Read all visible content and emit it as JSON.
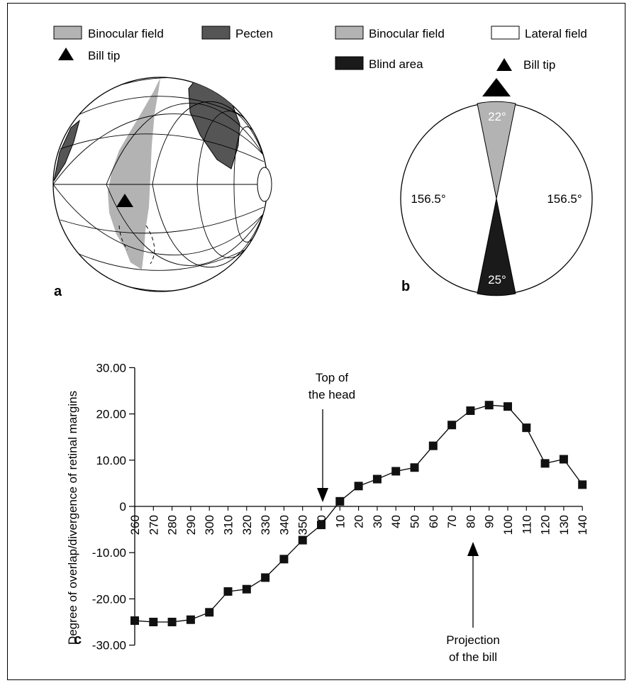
{
  "panel_a": {
    "label": "a",
    "legend": [
      {
        "label": "Binocular field",
        "color": "#b3b3b3"
      },
      {
        "label": "Pecten",
        "color": "#555555"
      },
      {
        "label": "Bill tip",
        "icon": "triangle-icon"
      }
    ]
  },
  "panel_b": {
    "label": "b",
    "legend": [
      {
        "label": "Binocular field",
        "color": "#b3b3b3"
      },
      {
        "label": "Lateral field",
        "color": "#ffffff"
      },
      {
        "label": "Blind area",
        "color": "#1a1a1a"
      },
      {
        "label": "Bill tip",
        "icon": "triangle-icon"
      }
    ],
    "binocular_label": "22°",
    "left_label": "156.5°",
    "right_label": "156.5°",
    "blind_label": "25°"
  },
  "panel_c": {
    "label": "c",
    "annotation_top": [
      "Top of",
      "the head"
    ],
    "annotation_bottom": [
      "Projection",
      "of the bill"
    ]
  },
  "chart_data": {
    "type": "line",
    "marker": "square",
    "ylabel": "Degree of overlap/divergence of retinal margins",
    "xlabel": "",
    "ylim": [
      -30,
      30
    ],
    "yticks": [
      "30.00",
      "20.00",
      "10.00",
      "0",
      "-10.00",
      "-20.00",
      "-30.00"
    ],
    "x": [
      "260",
      "270",
      "280",
      "290",
      "300",
      "310",
      "320",
      "330",
      "340",
      "350",
      "0",
      "10",
      "20",
      "30",
      "40",
      "50",
      "60",
      "70",
      "80",
      "90",
      "100",
      "110",
      "120",
      "130",
      "140"
    ],
    "series": [
      {
        "values": [
          -24.7,
          -25.0,
          -25.0,
          -24.5,
          -22.9,
          -18.4,
          -17.9,
          -15.4,
          -11.4,
          -7.3,
          -4.0,
          1.1,
          4.4,
          5.9,
          7.6,
          8.4,
          13.1,
          17.6,
          20.7,
          21.9,
          21.6,
          17.0,
          9.3,
          10.2,
          4.7
        ]
      }
    ]
  }
}
